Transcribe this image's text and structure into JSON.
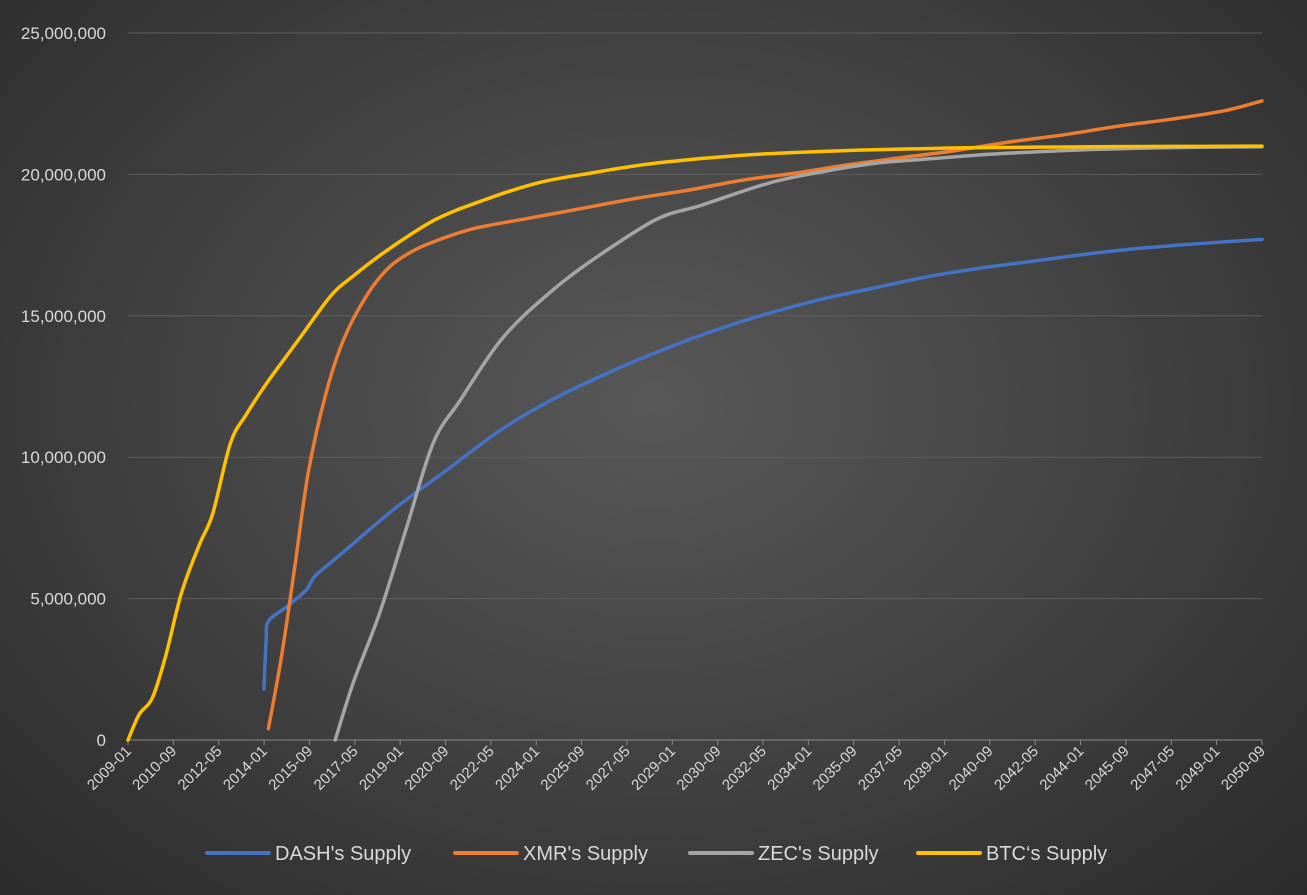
{
  "chart_data": {
    "type": "line",
    "title": "",
    "xlabel": "",
    "ylabel": "",
    "ylim": [
      0,
      25000000
    ],
    "y_ticks": [
      0,
      5000000,
      10000000,
      15000000,
      20000000,
      25000000
    ],
    "y_tick_labels": [
      "0",
      "5,000,000",
      "10,000,000",
      "15,000,000",
      "20,000,000",
      "25,000,000"
    ],
    "xlim": [
      "2009-01",
      "2051-06"
    ],
    "x_tick_labels": [
      "2009-01",
      "2010-09",
      "2012-05",
      "2014-01",
      "2015-09",
      "2017-05",
      "2019-01",
      "2020-09",
      "2022-05",
      "2024-01",
      "2025-09",
      "2027-05",
      "2029-01",
      "2030-09",
      "2032-05",
      "2034-01",
      "2035-09",
      "2037-05",
      "2039-01",
      "2040-09",
      "2042-05",
      "2044-01",
      "2045-09",
      "2047-05",
      "2049-01",
      "2050-09"
    ],
    "grid": true,
    "legend": "bottom",
    "series": [
      {
        "name": "DASH's Supply",
        "color": "#4472c4",
        "points": [
          [
            "2014-02",
            1800000
          ],
          [
            "2014-03",
            3500000
          ],
          [
            "2014-04",
            4200000
          ],
          [
            "2014-12",
            4700000
          ],
          [
            "2015-09",
            5300000
          ],
          [
            "2016-01",
            5800000
          ],
          [
            "2017-01",
            6600000
          ],
          [
            "2019-01",
            8200000
          ],
          [
            "2021-01",
            9600000
          ],
          [
            "2023-01",
            11000000
          ],
          [
            "2025-01",
            12100000
          ],
          [
            "2027-01",
            13000000
          ],
          [
            "2029-01",
            13800000
          ],
          [
            "2031-01",
            14500000
          ],
          [
            "2033-01",
            15100000
          ],
          [
            "2035-01",
            15600000
          ],
          [
            "2037-01",
            16000000
          ],
          [
            "2039-01",
            16400000
          ],
          [
            "2041-01",
            16700000
          ],
          [
            "2043-01",
            16950000
          ],
          [
            "2045-01",
            17200000
          ],
          [
            "2047-01",
            17400000
          ],
          [
            "2049-01",
            17550000
          ],
          [
            "2051-06",
            17700000
          ]
        ]
      },
      {
        "name": "XMR's Supply",
        "color": "#ed7d31",
        "points": [
          [
            "2014-04",
            400000
          ],
          [
            "2014-10",
            3000000
          ],
          [
            "2015-04",
            6200000
          ],
          [
            "2015-10",
            9500000
          ],
          [
            "2016-06",
            12300000
          ],
          [
            "2017-02",
            14200000
          ],
          [
            "2017-12",
            15700000
          ],
          [
            "2018-10",
            16700000
          ],
          [
            "2019-09",
            17300000
          ],
          [
            "2020-09",
            17700000
          ],
          [
            "2022-01",
            18100000
          ],
          [
            "2024-01",
            18450000
          ],
          [
            "2026-01",
            18800000
          ],
          [
            "2028-01",
            19150000
          ],
          [
            "2030-01",
            19450000
          ],
          [
            "2032-01",
            19800000
          ],
          [
            "2034-01",
            20050000
          ],
          [
            "2036-01",
            20350000
          ],
          [
            "2038-01",
            20600000
          ],
          [
            "2040-01",
            20850000
          ],
          [
            "2042-01",
            21150000
          ],
          [
            "2044-01",
            21400000
          ],
          [
            "2046-01",
            21700000
          ],
          [
            "2048-01",
            21950000
          ],
          [
            "2050-01",
            22250000
          ],
          [
            "2051-06",
            22600000
          ]
        ]
      },
      {
        "name": "ZEC's Supply",
        "color": "#a5a5a5",
        "points": [
          [
            "2016-10",
            0
          ],
          [
            "2017-06",
            2000000
          ],
          [
            "2018-06",
            4500000
          ],
          [
            "2019-06",
            7500000
          ],
          [
            "2020-06",
            10500000
          ],
          [
            "2021-06",
            12000000
          ],
          [
            "2023-01",
            14200000
          ],
          [
            "2024-10",
            15800000
          ],
          [
            "2026-06",
            17000000
          ],
          [
            "2028-10",
            18400000
          ],
          [
            "2030-06",
            18900000
          ],
          [
            "2033-01",
            19700000
          ],
          [
            "2035-01",
            20100000
          ],
          [
            "2037-01",
            20400000
          ],
          [
            "2039-01",
            20550000
          ],
          [
            "2041-01",
            20700000
          ],
          [
            "2043-01",
            20800000
          ],
          [
            "2045-01",
            20880000
          ],
          [
            "2047-01",
            20930000
          ],
          [
            "2049-01",
            20960000
          ],
          [
            "2051-06",
            20980000
          ]
        ]
      },
      {
        "name": "BTC‘s Supply",
        "color": "#ffc000",
        "points": [
          [
            "2009-01",
            0
          ],
          [
            "2009-06",
            900000
          ],
          [
            "2009-12",
            1500000
          ],
          [
            "2010-06",
            3000000
          ],
          [
            "2011-01",
            5200000
          ],
          [
            "2011-09",
            6900000
          ],
          [
            "2012-03",
            8000000
          ],
          [
            "2012-11",
            10500000
          ],
          [
            "2013-06",
            11500000
          ],
          [
            "2014-04",
            12700000
          ],
          [
            "2015-06",
            14200000
          ],
          [
            "2016-08",
            15700000
          ],
          [
            "2017-06",
            16400000
          ],
          [
            "2018-09",
            17300000
          ],
          [
            "2020-07",
            18400000
          ],
          [
            "2022-05",
            19100000
          ],
          [
            "2024-05",
            19700000
          ],
          [
            "2026-05",
            20050000
          ],
          [
            "2028-05",
            20350000
          ],
          [
            "2030-05",
            20550000
          ],
          [
            "2032-05",
            20700000
          ],
          [
            "2034-05",
            20790000
          ],
          [
            "2036-05",
            20860000
          ],
          [
            "2038-05",
            20900000
          ],
          [
            "2040-05",
            20940000
          ],
          [
            "2044-01",
            20970000
          ],
          [
            "2048-01",
            20990000
          ],
          [
            "2051-06",
            21000000
          ]
        ]
      }
    ]
  }
}
